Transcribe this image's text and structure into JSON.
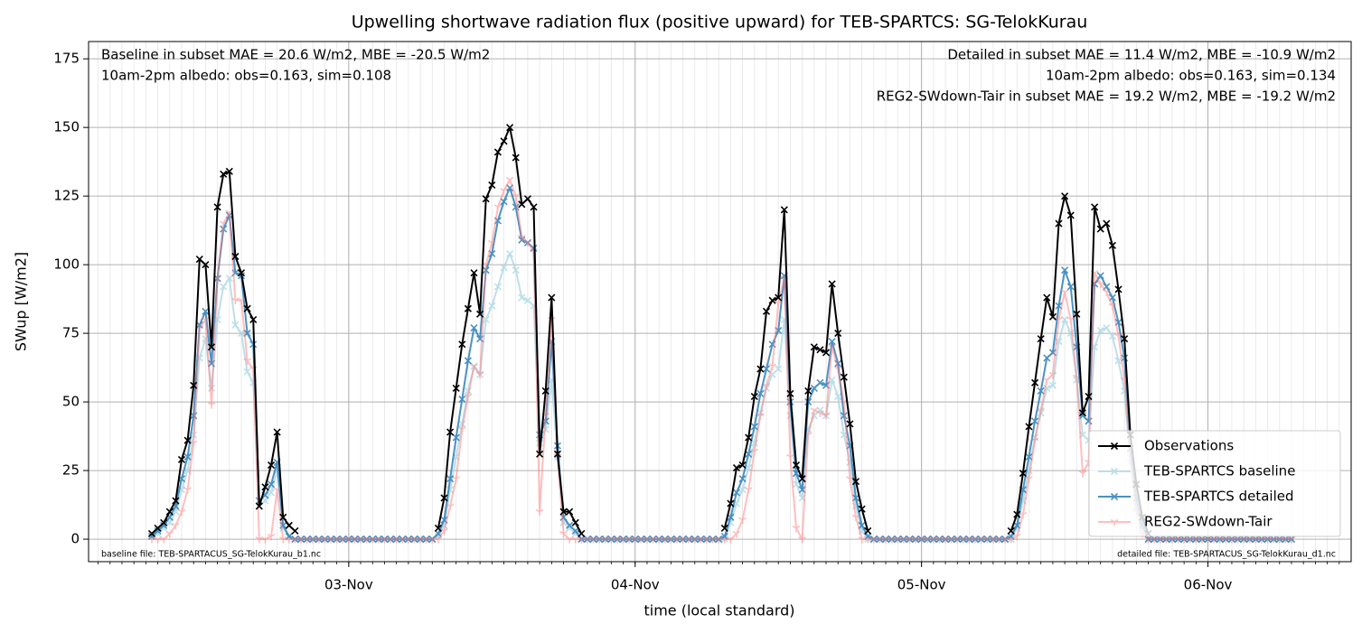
{
  "chart_data": {
    "type": "line",
    "title": "Upwelling shortwave radiation flux (positive upward) for TEB-SPARTCS: SG-TelokKurau",
    "xlabel": "time (local standard)",
    "ylabel": "SWup [W/m2]",
    "xlim": [
      2.2,
      108
    ],
    "ylim": [
      -8.2,
      181.3
    ],
    "yticks": [
      0,
      25,
      50,
      75,
      100,
      125,
      150,
      175
    ],
    "xticks": [
      {
        "value": 24,
        "label": "03-Nov"
      },
      {
        "value": 48,
        "label": "04-Nov"
      },
      {
        "value": 72,
        "label": "05-Nov"
      },
      {
        "value": 96,
        "label": "06-Nov"
      }
    ],
    "xminorticks": [
      3,
      4,
      5,
      6,
      7,
      8,
      9,
      10,
      11,
      12,
      13,
      14,
      15,
      16,
      17,
      18,
      19,
      20,
      21,
      22,
      23,
      24,
      25,
      26,
      27,
      28,
      29,
      30,
      31,
      32,
      33,
      34,
      35,
      36,
      37,
      38,
      39,
      40,
      41,
      42,
      43,
      44,
      45,
      46,
      47,
      48,
      49,
      50,
      51,
      52,
      53,
      54,
      55,
      56,
      57,
      58,
      59,
      60,
      61,
      62,
      63,
      64,
      65,
      66,
      67,
      68,
      69,
      70,
      71,
      72,
      73,
      74,
      75,
      76,
      77,
      78,
      79,
      80,
      81,
      82,
      83,
      84,
      85,
      86,
      87,
      88,
      89,
      90,
      91,
      92,
      93,
      94,
      95,
      96,
      97,
      98,
      99,
      100,
      101,
      102,
      103,
      104,
      105,
      106,
      107
    ],
    "grid": true,
    "legend": "lower right",
    "annotations": [
      {
        "text": "Baseline in subset MAE = 20.6 W/m2, MBE = -20.5 W/m2",
        "color": "#add8e6"
      },
      {
        "text": "10am-2pm albedo: obs=0.163, sim=0.108",
        "color": "#000000"
      },
      {
        "text": "Detailed in subset MAE = 11.4 W/m2, MBE = -10.9 W/m2",
        "color": "#1f77b4"
      },
      {
        "text": "10am-2pm albedo: obs=0.163, sim=0.134",
        "color": "#000000"
      },
      {
        "text": "REG2-SWdown-Tair in subset MAE = 19.2 W/m2, MBE = -19.2 W/m2",
        "color": "#ff0000"
      },
      {
        "text": "baseline file: TEB-SPARTACUS_SG-TelokKurau_b1.nc",
        "color": "#000000"
      },
      {
        "text": "detailed file: TEB-SPARTACUS_SG-TelokKurau_d1.nc",
        "color": "#000000"
      }
    ],
    "x": [
      7.5,
      8,
      8.5,
      9,
      9.5,
      10,
      10.5,
      11,
      11.5,
      12,
      12.5,
      13,
      13.5,
      14,
      14.5,
      15,
      15.5,
      16,
      16.5,
      17,
      17.5,
      18,
      18.5,
      19,
      19.5,
      20,
      20.5,
      21,
      21.5,
      22,
      22.5,
      23,
      23.5,
      24,
      24.5,
      25,
      25.5,
      26,
      26.5,
      27,
      27.5,
      28,
      28.5,
      29,
      29.5,
      30,
      30.5,
      31,
      31.5,
      32,
      32.5,
      33,
      33.5,
      34,
      34.5,
      35,
      35.5,
      36,
      36.5,
      37,
      37.5,
      38,
      38.5,
      39,
      39.5,
      40,
      40.5,
      41,
      41.5,
      42,
      42.5,
      43,
      43.5,
      44,
      44.5,
      45,
      45.5,
      46,
      46.5,
      47,
      47.5,
      48,
      48.5,
      49,
      49.5,
      50,
      50.5,
      51,
      51.5,
      52,
      52.5,
      53,
      53.5,
      54,
      54.5,
      55,
      55.5,
      56,
      56.5,
      57,
      57.5,
      58,
      58.5,
      59,
      59.5,
      60,
      60.5,
      61,
      61.5,
      62,
      62.5,
      63,
      63.5,
      64,
      64.5,
      65,
      65.5,
      66,
      66.5,
      67,
      67.5,
      68,
      68.5,
      69,
      69.5,
      70,
      70.5,
      71,
      71.5,
      72,
      72.5,
      73,
      73.5,
      74,
      74.5,
      75,
      75.5,
      76,
      76.5,
      77,
      77.5,
      78,
      78.5,
      79,
      79.5,
      80,
      80.5,
      81,
      81.5,
      82,
      82.5,
      83,
      83.5,
      84,
      84.5,
      85,
      85.5,
      86,
      86.5,
      87,
      87.5,
      88,
      88.5,
      89,
      89.5,
      90,
      90.5,
      91,
      91.5,
      92,
      92.5,
      93,
      93.5,
      94,
      94.5,
      95,
      95.5,
      96,
      96.5,
      97,
      97.5,
      98,
      98.5,
      99,
      99.5,
      100,
      100.5,
      101,
      101.5,
      102,
      102.5,
      103
    ],
    "series": [
      {
        "name": "Observations",
        "color": "#000000",
        "alpha": 1,
        "marker": "x",
        "values": [
          2,
          4,
          6,
          10,
          14,
          29,
          36,
          56,
          102,
          100,
          70,
          121,
          133,
          134,
          103,
          97,
          84,
          80,
          12,
          19,
          27,
          39,
          8,
          5,
          3,
          null,
          null,
          null,
          null,
          null,
          null,
          null,
          null,
          null,
          null,
          null,
          null,
          null,
          null,
          null,
          null,
          null,
          null,
          null,
          null,
          null,
          null,
          null,
          4,
          15,
          39,
          55,
          71,
          84,
          97,
          82,
          124,
          129,
          141,
          145,
          150,
          139,
          122,
          124,
          121,
          31,
          54,
          88,
          31,
          10,
          10,
          6,
          2,
          null,
          null,
          null,
          null,
          null,
          null,
          null,
          null,
          null,
          null,
          null,
          null,
          null,
          null,
          null,
          null,
          null,
          null,
          null,
          null,
          null,
          null,
          null,
          4,
          13,
          26,
          27,
          37,
          52,
          62,
          83,
          87,
          88,
          120,
          53,
          27,
          22,
          54,
          70,
          69,
          68,
          93,
          75,
          59,
          42,
          21,
          11,
          3,
          null,
          null,
          null,
          null,
          null,
          null,
          null,
          null,
          null,
          null,
          null,
          null,
          null,
          null,
          null,
          null,
          null,
          null,
          null,
          null,
          null,
          null,
          null,
          3,
          9,
          24,
          41,
          57,
          73,
          88,
          81,
          115,
          125,
          118,
          82,
          46,
          52,
          121,
          113,
          115,
          107,
          91,
          73,
          38,
          20,
          8,
          2,
          null,
          null,
          null,
          null,
          null,
          null,
          null,
          null,
          null,
          null,
          null,
          null,
          null,
          null,
          null,
          null,
          null,
          null,
          null,
          null,
          null,
          null,
          null,
          null
        ]
      },
      {
        "name": "TEB-SPARTCS baseline",
        "color": "#add8e6",
        "alpha": 0.8,
        "marker": "x",
        "values": [
          1,
          2,
          4,
          6,
          10,
          18,
          25,
          38,
          66,
          73,
          55,
          80,
          92,
          95,
          78,
          75,
          61,
          57,
          12,
          14,
          17,
          25,
          4,
          1,
          0,
          0,
          0,
          0,
          0,
          0,
          0,
          0,
          0,
          0,
          0,
          0,
          0,
          0,
          0,
          0,
          0,
          0,
          0,
          0,
          0,
          0,
          0,
          0,
          1,
          5,
          18,
          30,
          42,
          54,
          63,
          60,
          80,
          85,
          92,
          99,
          104,
          98,
          88,
          87,
          85,
          35,
          40,
          58,
          30,
          6,
          4,
          2,
          0,
          0,
          0,
          0,
          0,
          0,
          0,
          0,
          0,
          0,
          0,
          0,
          0,
          0,
          0,
          0,
          0,
          0,
          0,
          0,
          0,
          0,
          0,
          0,
          0,
          6,
          13,
          18,
          26,
          35,
          46,
          55,
          60,
          62,
          80,
          45,
          20,
          15,
          40,
          45,
          47,
          45,
          58,
          52,
          38,
          28,
          12,
          3,
          0,
          0,
          0,
          0,
          0,
          0,
          0,
          0,
          0,
          0,
          0,
          0,
          0,
          0,
          0,
          0,
          0,
          0,
          0,
          0,
          0,
          0,
          0,
          0,
          0,
          4,
          14,
          25,
          37,
          46,
          55,
          56,
          72,
          80,
          75,
          58,
          38,
          36,
          70,
          76,
          77,
          74,
          65,
          54,
          28,
          12,
          4,
          0,
          0,
          0,
          0,
          0,
          0,
          0,
          0,
          0,
          0,
          0,
          0,
          0,
          0,
          0,
          0,
          0,
          0,
          0,
          0,
          0,
          0,
          0,
          0,
          0
        ]
      },
      {
        "name": "TEB-SPARTCS detailed",
        "color": "#1f77b4",
        "alpha": 0.8,
        "marker": "x",
        "values": [
          1,
          3,
          5,
          8,
          12,
          22,
          30,
          45,
          78,
          83,
          64,
          95,
          113,
          118,
          97,
          96,
          75,
          71,
          14,
          16,
          20,
          28,
          5,
          1,
          0,
          0,
          0,
          0,
          0,
          0,
          0,
          0,
          0,
          0,
          0,
          0,
          0,
          0,
          0,
          0,
          0,
          0,
          0,
          0,
          0,
          0,
          0,
          0,
          2,
          7,
          22,
          37,
          51,
          65,
          77,
          73,
          98,
          104,
          116,
          123,
          128,
          121,
          109,
          108,
          106,
          38,
          43,
          72,
          34,
          8,
          5,
          3,
          0,
          0,
          0,
          0,
          0,
          0,
          0,
          0,
          0,
          0,
          0,
          0,
          0,
          0,
          0,
          0,
          0,
          0,
          0,
          0,
          0,
          0,
          0,
          0,
          1,
          8,
          17,
          22,
          31,
          41,
          53,
          62,
          71,
          76,
          96,
          50,
          24,
          18,
          50,
          55,
          57,
          56,
          72,
          64,
          45,
          34,
          15,
          5,
          1,
          0,
          0,
          0,
          0,
          0,
          0,
          0,
          0,
          0,
          0,
          0,
          0,
          0,
          0,
          0,
          0,
          0,
          0,
          0,
          0,
          0,
          0,
          0,
          1,
          5,
          18,
          30,
          43,
          54,
          66,
          68,
          85,
          98,
          92,
          70,
          45,
          43,
          93,
          96,
          92,
          88,
          79,
          66,
          33,
          15,
          5,
          0,
          0,
          0,
          0,
          0,
          0,
          0,
          0,
          0,
          0,
          0,
          0,
          0,
          0,
          0,
          0,
          0,
          0,
          0,
          0,
          0,
          0,
          0,
          0,
          0
        ]
      },
      {
        "name": "REG2-SWdown-Tair",
        "color": "#ff7f7f",
        "alpha": 0.5,
        "marker": "tri_down",
        "values": [
          0,
          0,
          0,
          2,
          5,
          10,
          18,
          35,
          77,
          80,
          49,
          95,
          115,
          119,
          87,
          87,
          65,
          62,
          0,
          0,
          1,
          18,
          0,
          0,
          0,
          0,
          0,
          0,
          0,
          0,
          0,
          0,
          0,
          0,
          0,
          0,
          0,
          0,
          0,
          0,
          0,
          0,
          0,
          0,
          0,
          0,
          0,
          0,
          0,
          3,
          12,
          22,
          40,
          52,
          63,
          60,
          100,
          108,
          121,
          127,
          131,
          125,
          110,
          108,
          105,
          10,
          45,
          80,
          30,
          2,
          0,
          0,
          0,
          0,
          0,
          0,
          0,
          0,
          0,
          0,
          0,
          0,
          0,
          0,
          0,
          0,
          0,
          0,
          0,
          0,
          0,
          0,
          0,
          0,
          0,
          0,
          0,
          0,
          2,
          7,
          18,
          32,
          45,
          56,
          63,
          86,
          95,
          30,
          4,
          0,
          38,
          47,
          46,
          45,
          70,
          62,
          50,
          22,
          8,
          0,
          0,
          0,
          0,
          0,
          0,
          0,
          0,
          0,
          0,
          0,
          0,
          0,
          0,
          0,
          0,
          0,
          0,
          0,
          0,
          0,
          0,
          0,
          0,
          0,
          0,
          1,
          9,
          22,
          36,
          47,
          58,
          60,
          80,
          90,
          80,
          59,
          24,
          28,
          97,
          93,
          90,
          85,
          74,
          58,
          30,
          10,
          2,
          0,
          0,
          0,
          0,
          0,
          0,
          0,
          0,
          0,
          0,
          0,
          0,
          0,
          0,
          0,
          0,
          0,
          0,
          0,
          0,
          0,
          0,
          0,
          0,
          0
        ]
      }
    ]
  }
}
